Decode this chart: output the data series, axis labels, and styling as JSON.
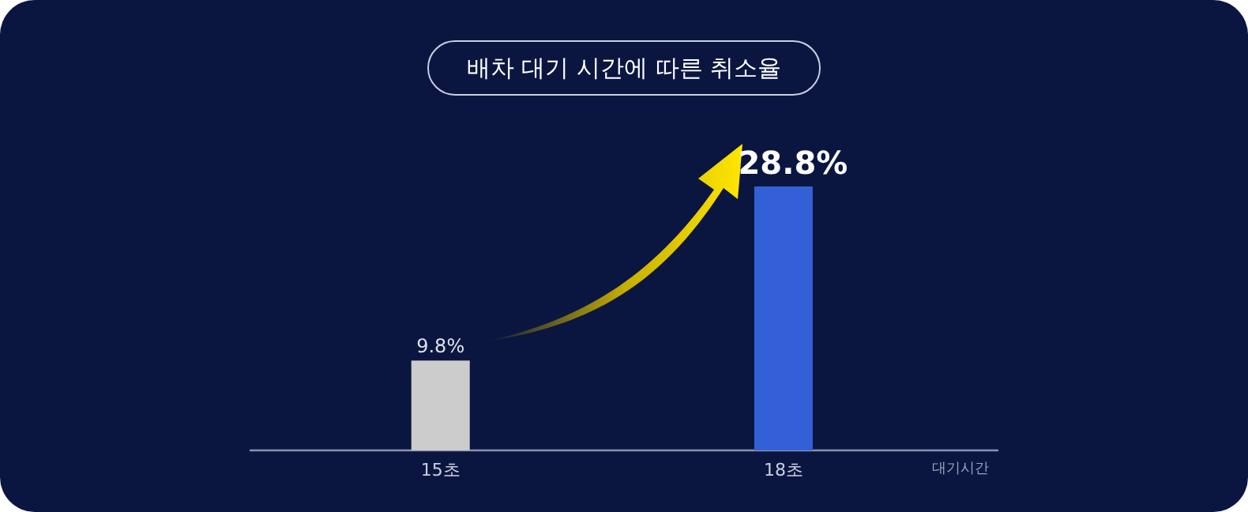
{
  "chart_data": {
    "type": "bar",
    "title": "배차 대기 시간에 따른 취소율",
    "xlabel": "대기시간",
    "categories": [
      "15초",
      "18초"
    ],
    "values": [
      9.8,
      28.8
    ],
    "value_labels": [
      "9.8%",
      "28.8%"
    ],
    "colors": [
      "#cccccc",
      "#3360d6"
    ],
    "tick_labels": "x"
  }
}
